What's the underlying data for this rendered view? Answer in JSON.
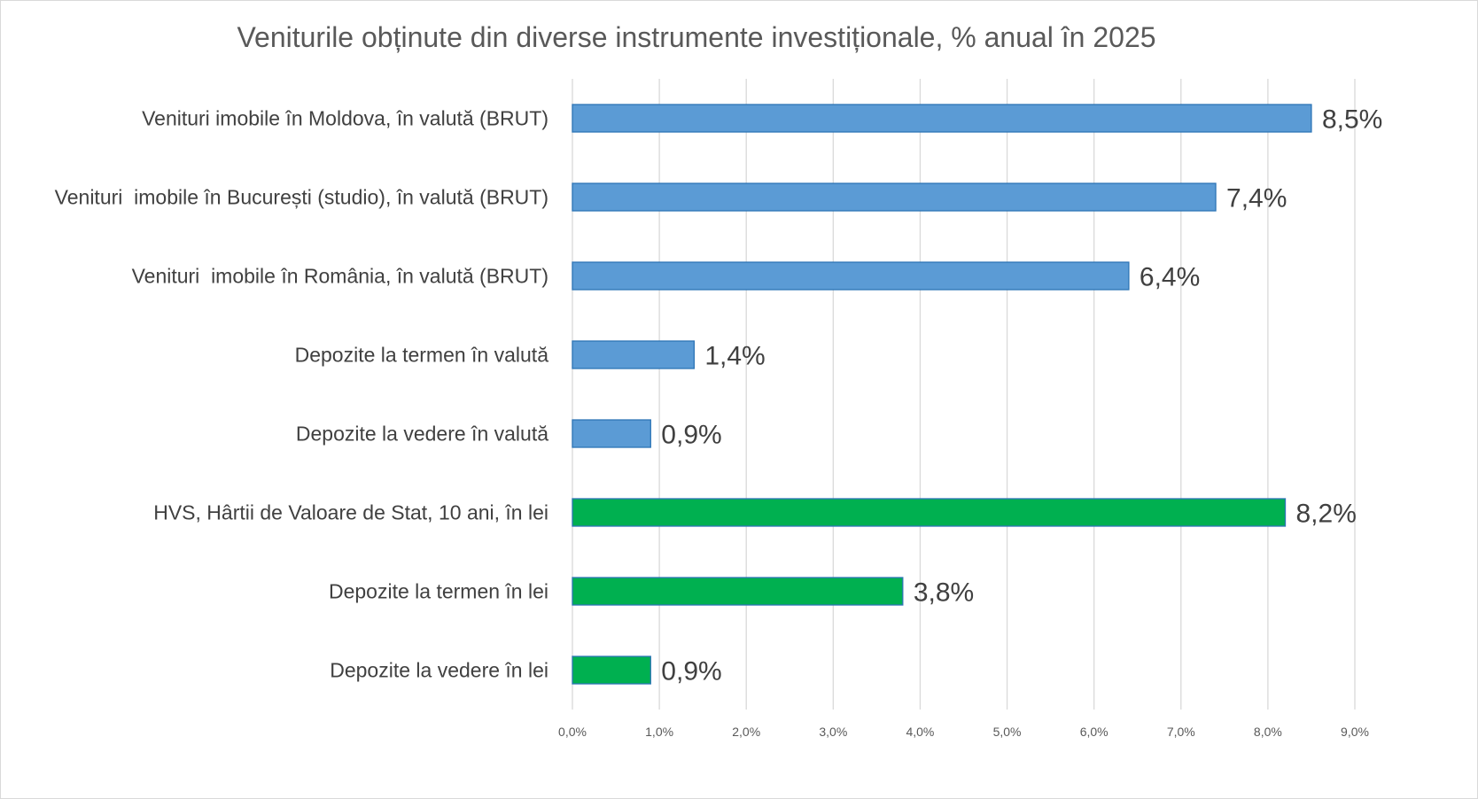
{
  "chart_data": {
    "type": "bar",
    "orientation": "horizontal",
    "title": "Veniturile obținute din diverse instrumente investiționale, % anual în 2025",
    "xlabel": "",
    "ylabel": "",
    "xlim": [
      0,
      9
    ],
    "grid": true,
    "legend": "none",
    "x_ticks": [
      "0,0%",
      "1,0%",
      "2,0%",
      "3,0%",
      "4,0%",
      "5,0%",
      "6,0%",
      "7,0%",
      "8,0%",
      "9,0%"
    ],
    "x_tick_values": [
      0,
      1,
      2,
      3,
      4,
      5,
      6,
      7,
      8,
      9
    ],
    "categories": [
      "Venituri imobile în Moldova, în valută (BRUT)",
      "Venituri  imobile în București (studio), în valută (BRUT)",
      "Venituri  imobile în România, în valută (BRUT)",
      "Depozite la termen în valută",
      "Depozite la vedere în valută",
      "HVS, Hârtii de Valoare de Stat, 10 ani, în lei",
      "Depozite la termen în lei",
      "Depozite la vedere în lei"
    ],
    "values": [
      8.5,
      7.4,
      6.4,
      1.4,
      0.9,
      8.2,
      3.8,
      0.9
    ],
    "data_labels": [
      "8,5%",
      "7,4%",
      "6,4%",
      "1,4%",
      "0,9%",
      "8,2%",
      "3,8%",
      "0,9%"
    ],
    "colors": [
      "#5b9bd5",
      "#5b9bd5",
      "#5b9bd5",
      "#5b9bd5",
      "#5b9bd5",
      "#00b050",
      "#00b050",
      "#00b050"
    ],
    "bar_border_color": "#2e75b6"
  }
}
